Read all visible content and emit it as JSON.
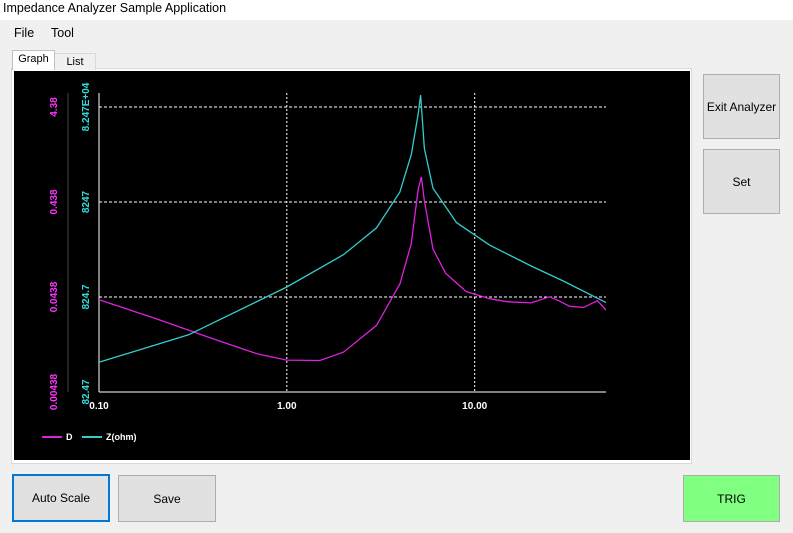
{
  "window": {
    "title": "Impedance Analyzer Sample Application"
  },
  "menu": {
    "file": "File",
    "tool": "Tool"
  },
  "tabs": [
    {
      "label": "Graph",
      "active": true
    },
    {
      "label": "List",
      "active": false
    }
  ],
  "buttons": {
    "exit_analyzer": "Exit Analyzer",
    "set": "Set",
    "auto_scale": "Auto Scale",
    "save": "Save",
    "trig": "TRIG",
    "trig_color": "#80ff80"
  },
  "chart_data": {
    "type": "line",
    "background": "#000000",
    "x_scale": "log",
    "xlim": [
      0.1,
      50
    ],
    "x_ticks": [
      "0.10",
      "1.00",
      "10.00"
    ],
    "grid": true,
    "legend_position": "bottom-left",
    "left_axis": {
      "series": "D",
      "scale": "log",
      "color": "#ff33ff",
      "range": [
        0.00438,
        4.38
      ],
      "ticks": [
        "4.38",
        "0.438",
        "0.0438",
        "0.00438"
      ]
    },
    "right_axis": {
      "series": "Z(ohm)",
      "scale": "log",
      "color": "#33dddd",
      "range": [
        82.47,
        82470
      ],
      "ticks": [
        "8.247E+04",
        "8247",
        "824.7",
        "82.47"
      ]
    },
    "series": [
      {
        "name": "D",
        "color": "#dd22dd",
        "x": [
          0.1,
          0.2,
          0.4,
          0.7,
          1.0,
          1.5,
          2.0,
          3.0,
          4.0,
          4.6,
          5.0,
          5.2,
          5.4,
          6.0,
          7.0,
          9.0,
          12.0,
          15.0,
          20.0,
          25.0,
          28.0,
          32.0,
          38.0,
          45.0,
          50.0
        ],
        "values": [
          0.041,
          0.026,
          0.016,
          0.011,
          0.0095,
          0.0094,
          0.0115,
          0.022,
          0.06,
          0.16,
          0.6,
          0.8,
          0.45,
          0.14,
          0.078,
          0.05,
          0.042,
          0.039,
          0.038,
          0.044,
          0.04,
          0.035,
          0.034,
          0.04,
          0.032
        ]
      },
      {
        "name": "Z(ohm)",
        "color": "#33cccc",
        "x": [
          0.1,
          0.3,
          1.0,
          2.0,
          3.0,
          4.0,
          4.6,
          5.0,
          5.15,
          5.4,
          6.0,
          8.0,
          12.0,
          20.0,
          30.0,
          50.0
        ],
        "values": [
          170,
          330,
          1050,
          2300,
          4400,
          10500,
          26000,
          70000,
          110000,
          30000,
          11500,
          5000,
          2900,
          1750,
          1200,
          720
        ]
      }
    ]
  }
}
